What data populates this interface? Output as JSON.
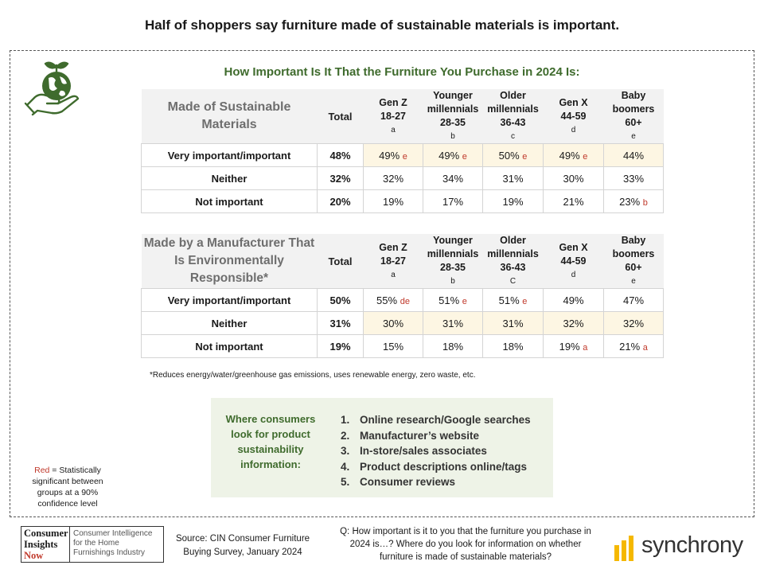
{
  "headline": "Half of shoppers say furniture made of sustainable materials is important.",
  "subtitle": "How Important Is It That the Furniture You Purchase in 2024 Is:",
  "columns": [
    {
      "name": "Gen Z",
      "range": "18-27",
      "code": "a"
    },
    {
      "name": "Younger millennials",
      "range": "28-35",
      "code": "b"
    },
    {
      "name": "Older millennials",
      "range": "36-43",
      "code": "c"
    },
    {
      "name": "Gen X",
      "range": "44-59",
      "code": "d"
    },
    {
      "name": "Baby boomers",
      "range": "60+",
      "code": "e"
    }
  ],
  "table1": {
    "question": "Made of Sustainable Materials",
    "total_label": "Total",
    "col_labels": [
      "Gen Z",
      "Younger millennials",
      "Older millennials",
      "Gen X",
      "Baby boomers"
    ],
    "col_ranges": [
      "18-27",
      "28-35",
      "36-43",
      "44-59",
      "60+"
    ],
    "col_codes": [
      "a",
      "b",
      "c",
      "d",
      "e"
    ],
    "rows": [
      {
        "label": "Very important/important",
        "total": "48%",
        "values": [
          "49%",
          "49%",
          "50%",
          "49%",
          "44%"
        ],
        "sig": [
          "e",
          "e",
          "e",
          "e",
          ""
        ]
      },
      {
        "label": "Neither",
        "total": "32%",
        "values": [
          "32%",
          "34%",
          "31%",
          "30%",
          "33%"
        ],
        "sig": [
          "",
          "",
          "",
          "",
          ""
        ]
      },
      {
        "label": "Not important",
        "total": "20%",
        "values": [
          "19%",
          "17%",
          "19%",
          "21%",
          "23%"
        ],
        "sig": [
          "",
          "",
          "",
          "",
          "b"
        ]
      }
    ]
  },
  "table2": {
    "question": "Made by a Manufacturer That Is Environmentally Responsible*",
    "total_label": "Total",
    "col_labels": [
      "Gen Z",
      "Younger millennials",
      "Older millennials",
      "Gen X",
      "Baby boomers"
    ],
    "col_ranges": [
      "18-27",
      "28-35",
      "36-43",
      "44-59",
      "60+"
    ],
    "col_codes": [
      "a",
      "b",
      "C",
      "d",
      "e"
    ],
    "rows": [
      {
        "label": "Very important/important",
        "total": "50%",
        "values": [
          "55%",
          "51%",
          "51%",
          "49%",
          "47%"
        ],
        "sig": [
          "de",
          "e",
          "e",
          "",
          ""
        ]
      },
      {
        "label": "Neither",
        "total": "31%",
        "values": [
          "30%",
          "31%",
          "31%",
          "32%",
          "32%"
        ],
        "sig": [
          "",
          "",
          "",
          "",
          ""
        ]
      },
      {
        "label": "Not important",
        "total": "19%",
        "values": [
          "15%",
          "18%",
          "18%",
          "19%",
          "21%"
        ],
        "sig": [
          "",
          "",
          "",
          "a",
          "a"
        ]
      }
    ]
  },
  "footnote": "*Reduces energy/water/greenhouse gas emissions, uses renewable energy, zero waste, etc.",
  "look_question": "Where consumers look for product sustainability information:",
  "look_list": [
    "Online research/Google searches",
    "Manufacturer’s website",
    "In-store/sales associates",
    "Product descriptions online/tags",
    "Consumer reviews"
  ],
  "legend": {
    "red_word": "Red",
    "text": " = Statistically significant between groups at a 90% confidence level"
  },
  "logo_cin": {
    "line1": "Consumer",
    "line2": "Insights",
    "line3": "Now",
    "tagline": "Consumer Intelligence for the Home Furnishings Industry"
  },
  "source": "Source: CIN Consumer Furniture Buying Survey, January 2024",
  "question_text": "Q: How important is it to you that the furniture you purchase in 2024 is…? Where do you look for information on whether furniture is made of sustainable materials?",
  "brand": "synchrony",
  "colors": {
    "green": "#3f6b2d",
    "red": "#c0392b",
    "highlight": "#fdf6e3",
    "header_bg": "#f2f2f2",
    "box_bg": "#eef3e7",
    "synchrony_yellow": "#f5b800"
  }
}
